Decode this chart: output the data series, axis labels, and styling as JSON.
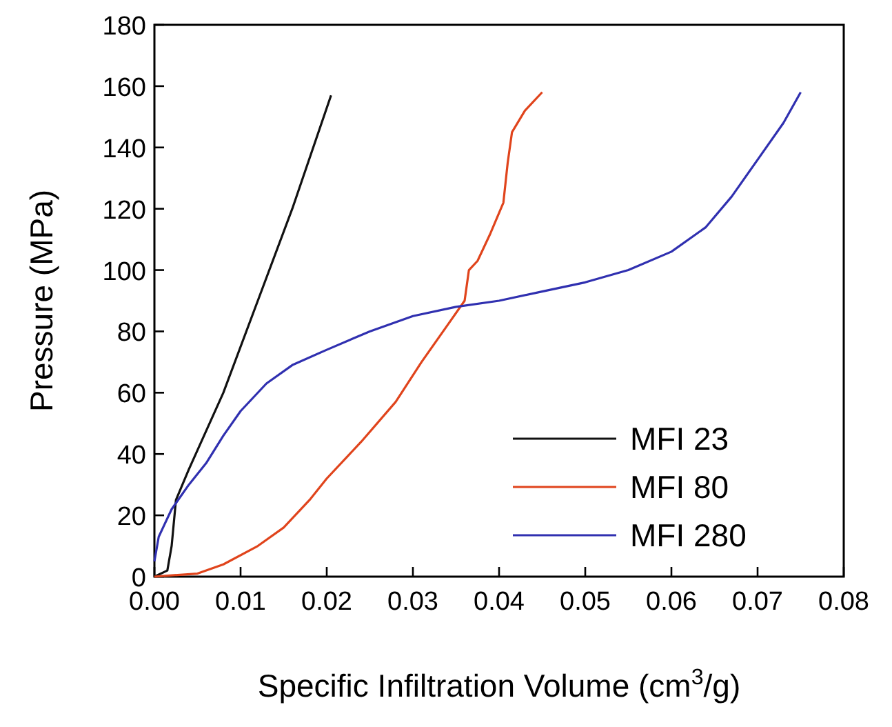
{
  "chart_data": {
    "type": "line",
    "xlabel": "Specific Infiltration Volume (cm$^{3}$/g)",
    "ylabel": "Pressure (MPa)",
    "xlim": [
      0,
      0.08
    ],
    "ylim": [
      0,
      180
    ],
    "xticks": [
      {
        "value": 0,
        "label": "0.00"
      },
      0.01,
      0.02,
      0.03,
      0.04,
      0.05,
      0.06,
      0.07,
      0.08
    ],
    "yticks": [
      0,
      20,
      40,
      60,
      80,
      100,
      120,
      140,
      160,
      180
    ],
    "legend": "bottom right",
    "grid": false,
    "marker": "none",
    "line_style": "solid",
    "series": [
      {
        "name": "MFI 23",
        "color": "#111111",
        "x": [
          0,
          0.0015,
          0.002,
          0.0025,
          0.004,
          0.008,
          0.012,
          0.016,
          0.0205
        ],
        "values": [
          0,
          2,
          10,
          25,
          35,
          60,
          90,
          120,
          157
        ]
      },
      {
        "name": "MFI 80",
        "color": "#e0441c",
        "x": [
          0,
          0.005,
          0.008,
          0.012,
          0.015,
          0.018,
          0.02,
          0.024,
          0.028,
          0.031,
          0.034,
          0.036,
          0.0365,
          0.0375,
          0.039,
          0.0405,
          0.041,
          0.0415,
          0.043,
          0.045
        ],
        "values": [
          0,
          1,
          4,
          10,
          16,
          25,
          32,
          44,
          57,
          70,
          82,
          90,
          100,
          103,
          112,
          122,
          135,
          145,
          152,
          158
        ]
      },
      {
        "name": "MFI 280",
        "color": "#3030b0",
        "x": [
          0,
          0.0005,
          0.002,
          0.004,
          0.006,
          0.008,
          0.01,
          0.013,
          0.016,
          0.02,
          0.025,
          0.03,
          0.035,
          0.04,
          0.045,
          0.05,
          0.055,
          0.06,
          0.064,
          0.067,
          0.07,
          0.073,
          0.075
        ],
        "values": [
          5,
          13,
          22,
          30,
          37,
          46,
          54,
          63,
          69,
          74,
          80,
          85,
          88,
          90,
          93,
          96,
          100,
          106,
          114,
          124,
          136,
          148,
          158
        ]
      }
    ]
  }
}
